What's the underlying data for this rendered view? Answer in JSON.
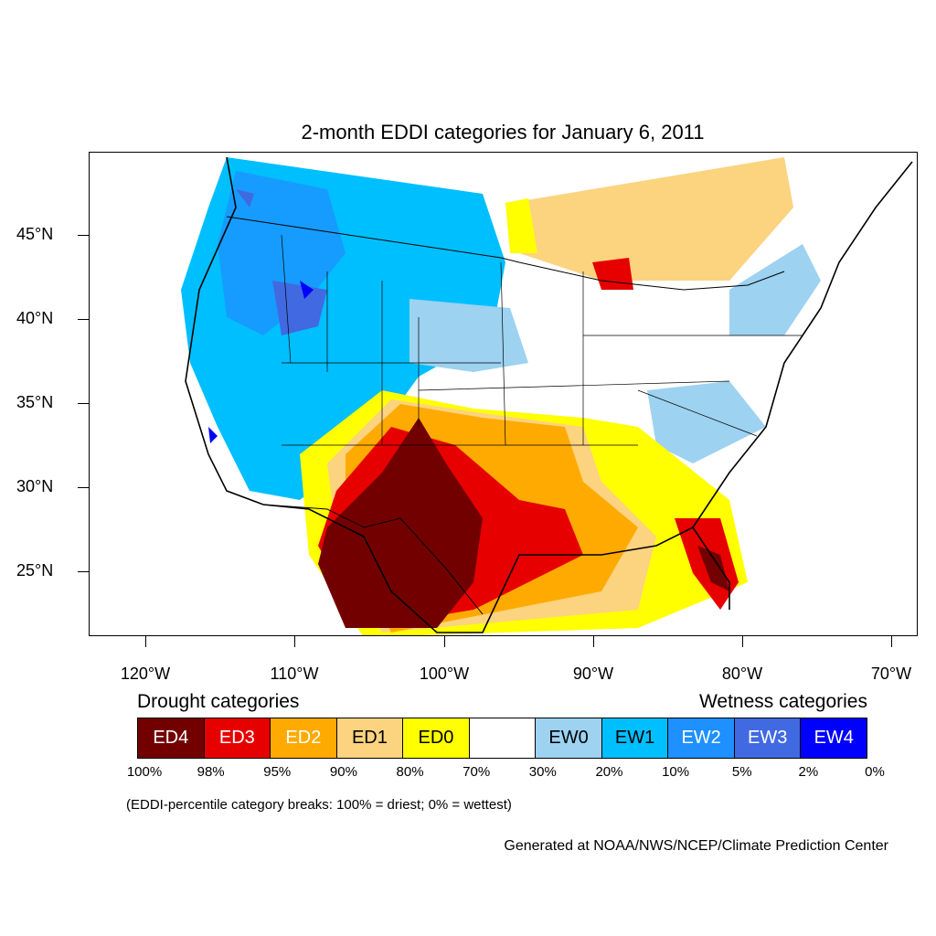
{
  "title": "2-month EDDI categories for January 6, 2011",
  "map": {
    "y_axis_labels": [
      "45°N",
      "40°N",
      "35°N",
      "30°N",
      "25°N"
    ],
    "x_axis_labels": [
      "120°W",
      "110°W",
      "100°W",
      "90°W",
      "80°W",
      "70°W"
    ],
    "latitudes": [
      45,
      40,
      35,
      30,
      25
    ],
    "longitudes": [
      -120,
      -110,
      -100,
      -90,
      -80,
      -70
    ]
  },
  "legend": {
    "drought_heading": "Drought categories",
    "wetness_heading": "Wetness categories",
    "categories": [
      {
        "label": "ED4",
        "color": "#730000",
        "text_color": "#ffffff"
      },
      {
        "label": "ED3",
        "color": "#e60000",
        "text_color": "#ffffff"
      },
      {
        "label": "ED2",
        "color": "#ffaa00",
        "text_color": "#ffffff"
      },
      {
        "label": "ED1",
        "color": "#fcd37f",
        "text_color": "#000000"
      },
      {
        "label": "ED0",
        "color": "#ffff00",
        "text_color": "#000000"
      },
      {
        "label": "",
        "color": "#ffffff",
        "text_color": "#000000"
      },
      {
        "label": "EW0",
        "color": "#9dd2f0",
        "text_color": "#000000"
      },
      {
        "label": "EW1",
        "color": "#00bfff",
        "text_color": "#000000"
      },
      {
        "label": "EW2",
        "color": "#1e90ff",
        "text_color": "#ffffff"
      },
      {
        "label": "EW3",
        "color": "#4169e1",
        "text_color": "#ffffff"
      },
      {
        "label": "EW4",
        "color": "#0000ff",
        "text_color": "#ffffff"
      }
    ],
    "percentiles": [
      "100%",
      "98%",
      "95%",
      "90%",
      "80%",
      "70%",
      "30%",
      "20%",
      "10%",
      "5%",
      "2%",
      "0%"
    ]
  },
  "note": "(EDDI-percentile category breaks: 100% = driest; 0% = wettest)",
  "credit": "Generated at NOAA/NWS/NCEP/Climate Prediction Center"
}
